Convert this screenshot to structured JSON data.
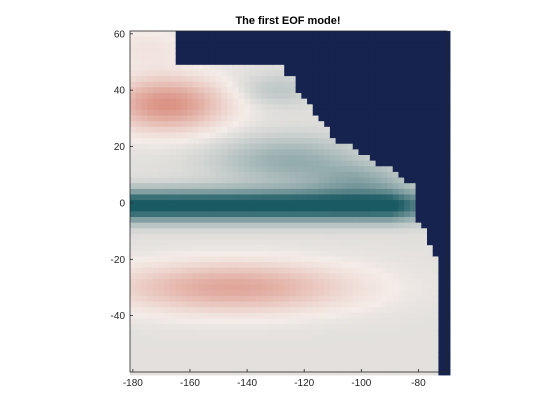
{
  "chart_data": {
    "type": "heatmap",
    "title": "The first EOF mode!",
    "xlabel": "",
    "ylabel": "",
    "xlim": [
      -181,
      -70
    ],
    "ylim": [
      -60,
      61
    ],
    "xticks": [
      -180,
      -160,
      -140,
      -120,
      -100,
      -80
    ],
    "yticks": [
      -40,
      -20,
      0,
      20,
      40,
      60
    ],
    "xtick_labels": [
      "-180",
      "-160",
      "-140",
      "-120",
      "-100",
      "-80"
    ],
    "ytick_labels": [
      "-40",
      "-20",
      "0",
      "20",
      "40",
      "60"
    ],
    "grid_resolution_deg": 2,
    "grid": false,
    "legend": "none",
    "colormap": {
      "name": "diverging teal-white-red",
      "negative": "#1a5a63",
      "neutral": "#f4ece8",
      "positive": "#cf6b58",
      "land_mask": "#17234f"
    },
    "features": [
      {
        "name": "equatorial-negative-band",
        "center_lat": -1,
        "value": -1.0
      },
      {
        "name": "north-positive-lobe",
        "center_lon": -168,
        "center_lat": 35,
        "value": 0.75
      },
      {
        "name": "south-positive-lobe",
        "center_lon": -140,
        "center_lat": -30,
        "value": 0.6
      },
      {
        "name": "land-north-america",
        "value": null
      },
      {
        "name": "land-south-america",
        "value": null
      }
    ]
  }
}
